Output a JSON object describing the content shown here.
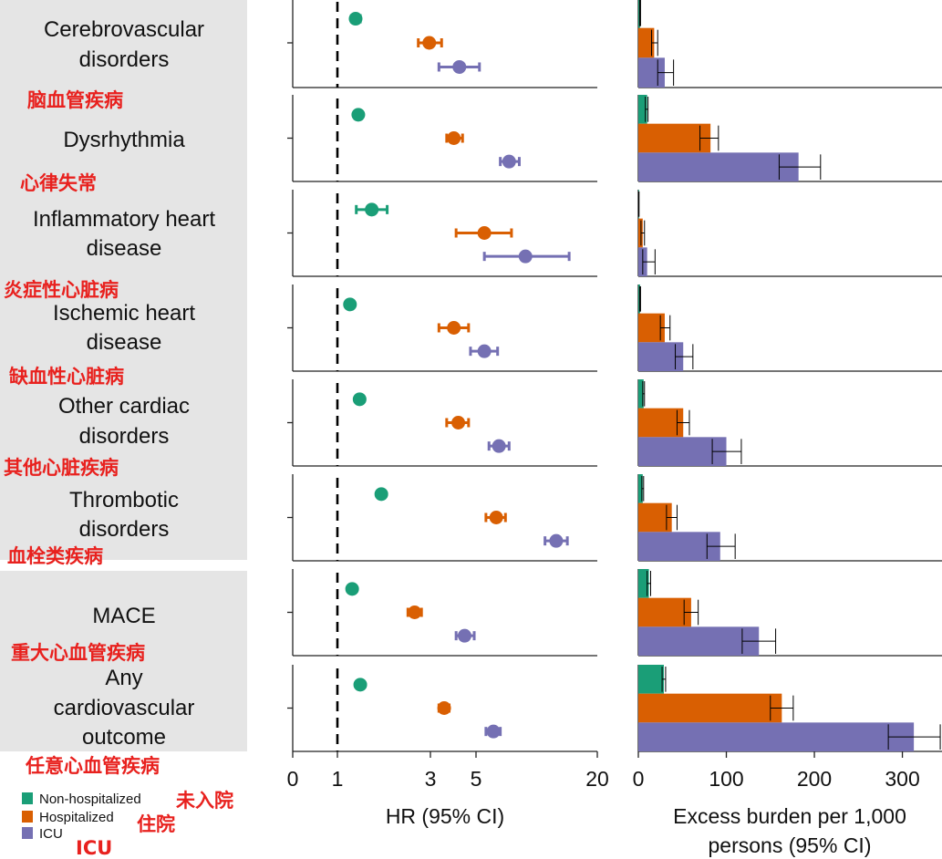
{
  "chart_data": [
    {
      "type": "forest",
      "xlabel": "HR (95% CI)",
      "x_ticks": [
        "0",
        "1",
        "3",
        "5",
        "20"
      ],
      "reference_line": 1,
      "series": [
        "Non-hospitalized",
        "Hospitalized",
        "ICU"
      ],
      "rows": [
        {
          "label": "Cerebrovascular disorders",
          "label_cn": "脑血管疾病",
          "hr": [
            {
              "est": 1.24,
              "lo": 1.18,
              "hi": 1.31
            },
            {
              "est": 2.96,
              "lo": 2.6,
              "hi": 3.4
            },
            {
              "est": 4.15,
              "lo": 3.3,
              "hi": 5.2
            }
          ]
        },
        {
          "label": "Dysrhythmia",
          "label_cn": "心律失常",
          "hr": [
            {
              "est": 1.28,
              "lo": 1.23,
              "hi": 1.33
            },
            {
              "est": 3.9,
              "lo": 3.6,
              "hi": 4.3
            },
            {
              "est": 7.3,
              "lo": 6.6,
              "hi": 8.2
            }
          ]
        },
        {
          "label": "Inflammatory heart disease",
          "label_cn": "炎症性心脏病",
          "hr": [
            {
              "est": 1.5,
              "lo": 1.25,
              "hi": 1.8
            },
            {
              "est": 5.5,
              "lo": 4.0,
              "hi": 7.5
            },
            {
              "est": 8.8,
              "lo": 5.5,
              "hi": 14.5
            }
          ]
        },
        {
          "label": "Ischemic heart disease",
          "label_cn": "缺血性心脏病",
          "hr": [
            {
              "est": 1.16,
              "lo": 1.11,
              "hi": 1.21
            },
            {
              "est": 3.9,
              "lo": 3.3,
              "hi": 4.6
            },
            {
              "est": 5.5,
              "lo": 4.7,
              "hi": 6.4
            }
          ]
        },
        {
          "label": "Other cardiac disorders",
          "label_cn": "其他心脏疾病",
          "hr": [
            {
              "est": 1.3,
              "lo": 1.25,
              "hi": 1.35
            },
            {
              "est": 4.1,
              "lo": 3.6,
              "hi": 4.6
            },
            {
              "est": 6.5,
              "lo": 5.8,
              "hi": 7.3
            }
          ]
        },
        {
          "label": "Thrombotic disorders",
          "label_cn": "血栓类疾病",
          "hr": [
            {
              "est": 1.68,
              "lo": 1.62,
              "hi": 1.74
            },
            {
              "est": 6.3,
              "lo": 5.6,
              "hi": 7.0
            },
            {
              "est": 12.5,
              "lo": 11.0,
              "hi": 14.2
            }
          ]
        },
        {
          "label": "MACE",
          "label_cn": "重大心血管疾病",
          "hr": [
            {
              "est": 1.19,
              "lo": 1.15,
              "hi": 1.24
            },
            {
              "est": 2.49,
              "lo": 2.3,
              "hi": 2.7
            },
            {
              "est": 4.4,
              "lo": 4.0,
              "hi": 4.9
            }
          ]
        },
        {
          "label": "Any cardiovascular outcome",
          "label_cn": "任意心血管疾病",
          "hr": [
            {
              "est": 1.31,
              "lo": 1.28,
              "hi": 1.34
            },
            {
              "est": 3.5,
              "lo": 3.3,
              "hi": 3.7
            },
            {
              "est": 6.1,
              "lo": 5.6,
              "hi": 6.6
            }
          ]
        }
      ]
    },
    {
      "type": "bar",
      "orientation": "horizontal",
      "xlabel": "Excess burden per 1,000 persons (95% CI)",
      "x_ticks": [
        0,
        100,
        200,
        300
      ],
      "xlim": [
        0,
        345
      ],
      "series": [
        "Non-hospitalized",
        "Hospitalized",
        "ICU"
      ],
      "rows": [
        {
          "label": "Cerebrovascular disorders",
          "values": [
            {
              "est": 2,
              "lo": 1.5,
              "hi": 2.5
            },
            {
              "est": 18,
              "lo": 15,
              "hi": 22
            },
            {
              "est": 30,
              "lo": 22,
              "hi": 40
            }
          ]
        },
        {
          "label": "Dysrhythmia",
          "values": [
            {
              "est": 10,
              "lo": 8,
              "hi": 11
            },
            {
              "est": 82,
              "lo": 70,
              "hi": 91
            },
            {
              "est": 182,
              "lo": 160,
              "hi": 207
            }
          ]
        },
        {
          "label": "Inflammatory heart disease",
          "values": [
            {
              "est": 0.5,
              "lo": 0.3,
              "hi": 0.8
            },
            {
              "est": 5,
              "lo": 3,
              "hi": 7
            },
            {
              "est": 10,
              "lo": 5,
              "hi": 19
            }
          ]
        },
        {
          "label": "Ischemic heart disease",
          "values": [
            {
              "est": 2,
              "lo": 1.5,
              "hi": 2.5
            },
            {
              "est": 30,
              "lo": 25,
              "hi": 36
            },
            {
              "est": 51,
              "lo": 42,
              "hi": 62
            }
          ]
        },
        {
          "label": "Other cardiac disorders",
          "values": [
            {
              "est": 6,
              "lo": 5,
              "hi": 7
            },
            {
              "est": 51,
              "lo": 44,
              "hi": 58
            },
            {
              "est": 100,
              "lo": 84,
              "hi": 117
            }
          ]
        },
        {
          "label": "Thrombotic disorders",
          "values": [
            {
              "est": 5,
              "lo": 4,
              "hi": 6
            },
            {
              "est": 38,
              "lo": 32,
              "hi": 44
            },
            {
              "est": 93,
              "lo": 78,
              "hi": 110
            }
          ]
        },
        {
          "label": "MACE",
          "values": [
            {
              "est": 12,
              "lo": 10,
              "hi": 14
            },
            {
              "est": 60,
              "lo": 52,
              "hi": 68
            },
            {
              "est": 137,
              "lo": 118,
              "hi": 156
            }
          ]
        },
        {
          "label": "Any cardiovascular outcome",
          "values": [
            {
              "est": 29,
              "lo": 27,
              "hi": 31
            },
            {
              "est": 163,
              "lo": 150,
              "hi": 176
            },
            {
              "est": 313,
              "lo": 284,
              "hi": 343
            }
          ]
        }
      ]
    }
  ],
  "colors": {
    "non_hospitalized": "#1a9e77",
    "hospitalized": "#d95f02",
    "icu": "#7570b3",
    "label_bg": "#e5e5e5",
    "cn_text": "#e8211e"
  },
  "legend": {
    "items": [
      {
        "label": "Non-hospitalized",
        "label_cn": "未入院"
      },
      {
        "label": "Hospitalized",
        "label_cn": "住院"
      },
      {
        "label": "ICU",
        "label_cn": "ICU"
      }
    ]
  }
}
